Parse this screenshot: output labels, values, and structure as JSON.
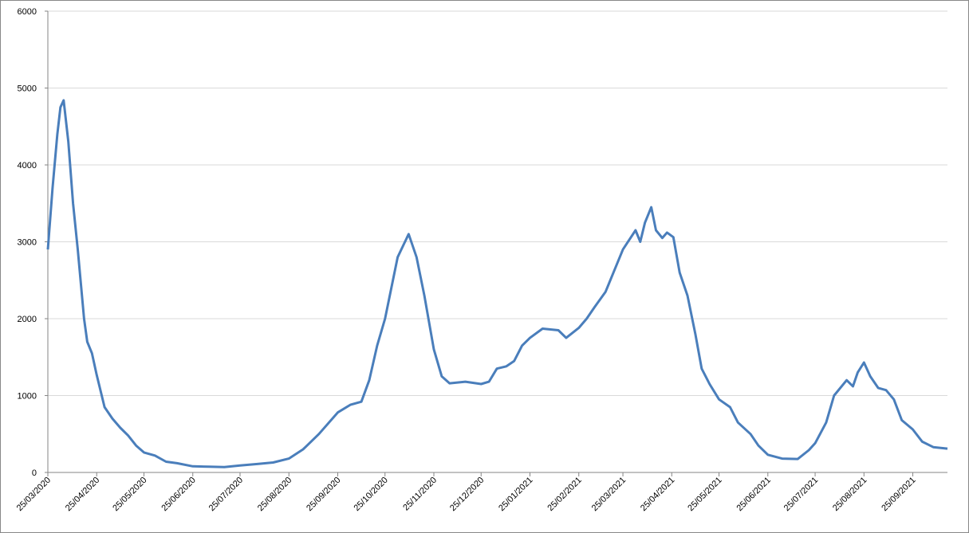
{
  "chart_data": {
    "type": "line",
    "x": [
      "25/03/2020",
      "28/03/2020",
      "31/03/2020",
      "02/04/2020",
      "04/04/2020",
      "07/04/2020",
      "10/04/2020",
      "13/04/2020",
      "17/04/2020",
      "19/04/2020",
      "22/04/2020",
      "25/04/2020",
      "30/04/2020",
      "05/05/2020",
      "10/05/2020",
      "15/05/2020",
      "20/05/2020",
      "25/05/2020",
      "01/06/2020",
      "08/06/2020",
      "15/06/2020",
      "25/06/2020",
      "05/07/2020",
      "15/07/2020",
      "25/07/2020",
      "05/08/2020",
      "15/08/2020",
      "25/08/2020",
      "03/09/2020",
      "13/09/2020",
      "25/09/2020",
      "03/10/2020",
      "10/10/2020",
      "15/10/2020",
      "20/10/2020",
      "25/10/2020",
      "02/11/2020",
      "09/11/2020",
      "14/11/2020",
      "19/11/2020",
      "25/11/2020",
      "30/11/2020",
      "05/12/2020",
      "15/12/2020",
      "25/12/2020",
      "30/12/2020",
      "04/01/2021",
      "10/01/2021",
      "15/01/2021",
      "20/01/2021",
      "25/01/2021",
      "02/02/2021",
      "12/02/2021",
      "17/02/2021",
      "25/02/2021",
      "02/03/2021",
      "07/03/2021",
      "14/03/2021",
      "19/03/2021",
      "25/03/2021",
      "02/04/2021",
      "05/04/2021",
      "08/04/2021",
      "12/04/2021",
      "15/04/2021",
      "19/04/2021",
      "22/04/2021",
      "26/04/2021",
      "30/04/2021",
      "05/05/2021",
      "10/05/2021",
      "14/05/2021",
      "19/05/2021",
      "25/05/2021",
      "01/06/2021",
      "06/06/2021",
      "14/06/2021",
      "19/06/2021",
      "25/06/2021",
      "04/07/2021",
      "14/07/2021",
      "21/07/2021",
      "25/07/2021",
      "01/08/2021",
      "06/08/2021",
      "14/08/2021",
      "18/08/2021",
      "21/08/2021",
      "25/08/2021",
      "29/08/2021",
      "03/09/2021",
      "08/09/2021",
      "13/09/2021",
      "18/09/2021",
      "25/09/2021",
      "01/10/2021",
      "08/10/2021",
      "17/10/2021"
    ],
    "series": [
      {
        "color": "#4a7ebb",
        "values": [
          2900,
          3700,
          4400,
          4750,
          4840,
          4300,
          3500,
          2900,
          2000,
          1700,
          1550,
          1270,
          850,
          700,
          580,
          480,
          350,
          260,
          220,
          140,
          120,
          80,
          75,
          70,
          90,
          110,
          130,
          180,
          300,
          500,
          780,
          880,
          920,
          1200,
          1650,
          2000,
          2800,
          3100,
          2800,
          2300,
          1600,
          1250,
          1160,
          1180,
          1150,
          1180,
          1350,
          1380,
          1450,
          1650,
          1750,
          1870,
          1850,
          1750,
          1880,
          2000,
          2150,
          2350,
          2600,
          2900,
          3150,
          3000,
          3250,
          3450,
          3150,
          3050,
          3120,
          3060,
          2600,
          2300,
          1800,
          1350,
          1150,
          950,
          850,
          650,
          500,
          350,
          230,
          180,
          175,
          290,
          380,
          650,
          1000,
          1200,
          1120,
          1300,
          1430,
          1250,
          1100,
          1070,
          950,
          680,
          560,
          400,
          330,
          310
        ]
      }
    ],
    "xlim": [
      "25/03/2020",
      "17/10/2021"
    ],
    "xticks": [
      "25/03/2020",
      "25/04/2020",
      "25/05/2020",
      "25/06/2020",
      "25/07/2020",
      "25/08/2020",
      "25/09/2020",
      "25/10/2020",
      "25/11/2020",
      "25/12/2020",
      "25/01/2021",
      "25/02/2021",
      "25/03/2021",
      "25/04/2021",
      "25/05/2021",
      "25/06/2021",
      "25/07/2021",
      "25/08/2021",
      "25/09/2021"
    ],
    "ylim": [
      0,
      6000
    ],
    "yticks": [
      0,
      1000,
      2000,
      3000,
      4000,
      5000,
      6000
    ],
    "grid": true
  }
}
